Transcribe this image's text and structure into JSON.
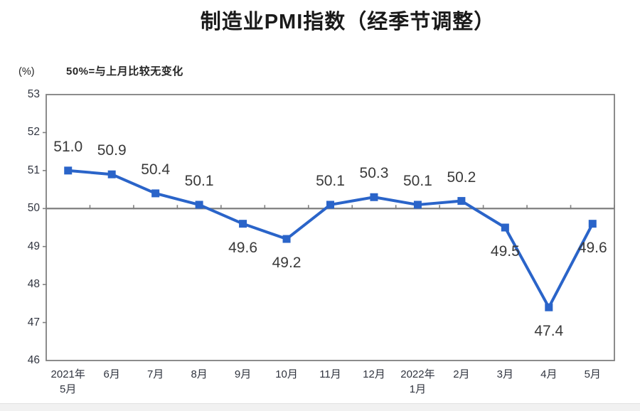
{
  "title": "制造业PMI指数（经季节调整）",
  "subtitle": "50%=与上月比较无变化",
  "unit_label": "(%)",
  "chart_data": {
    "type": "line",
    "title": "制造业PMI指数（经季节调整）",
    "subtitle": "50%=与上月比较无变化",
    "ylabel": "(%)",
    "categories": [
      "2021年\n5月",
      "6月",
      "7月",
      "8月",
      "9月",
      "10月",
      "11月",
      "12月",
      "2022年\n1月",
      "2月",
      "3月",
      "4月",
      "5月"
    ],
    "values": [
      51.0,
      50.9,
      50.4,
      50.1,
      49.6,
      49.2,
      50.1,
      50.3,
      50.1,
      50.2,
      49.5,
      47.4,
      49.6
    ],
    "value_labels": [
      "51.0",
      "50.9",
      "50.4",
      "50.1",
      "49.6",
      "49.2",
      "50.1",
      "50.3",
      "50.1",
      "50.2",
      "49.5",
      "47.4",
      "49.6"
    ],
    "ylim": [
      46,
      53
    ],
    "ytick_step": 1,
    "yticks": [
      46,
      47,
      48,
      49,
      50,
      51,
      52,
      53
    ],
    "reference_line": 50,
    "grid": false,
    "legend": false,
    "marker": "square",
    "colors": {
      "series_line": "#2a64c9",
      "axis": "#7f7f7f",
      "reference_line": "#7f7f7f",
      "data_label_text": "#3a3a3a",
      "axis_label_text": "#30343f",
      "title_text": "#1a1a1a"
    }
  }
}
